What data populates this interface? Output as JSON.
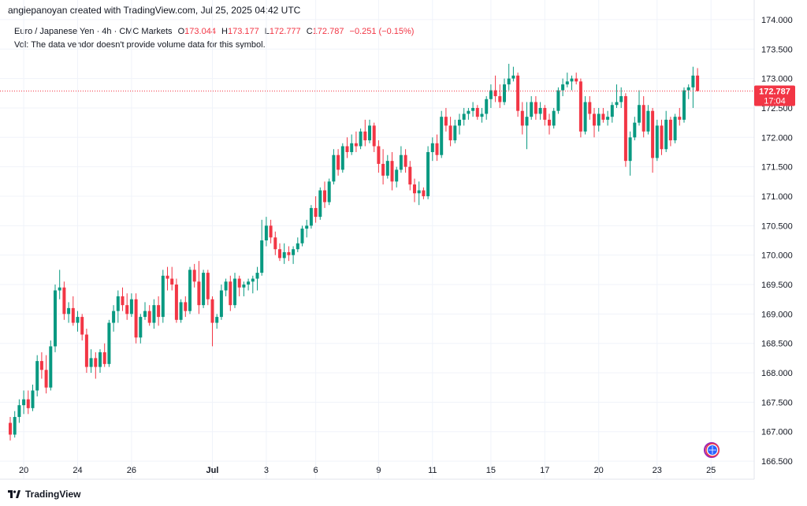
{
  "header": {
    "text": "angiepanoyan created with TradingView.com, Jul 25, 2025 04:42 UTC"
  },
  "legend": {
    "symbol": "Euro / Japanese Yen · 4h · CMC Markets",
    "o_label": "O",
    "o_val": "173.044",
    "h_label": "H",
    "h_val": "173.177",
    "l_label": "L",
    "l_val": "172.777",
    "c_label": "C",
    "c_val": "172.787",
    "change": "−0.251 (−0.15%)",
    "vol_line": "Vol: The data vendor doesn't provide volume data for this symbol."
  },
  "price_tag": {
    "price": "172.787",
    "countdown": "17:04"
  },
  "footer": {
    "brand": "TradingView"
  },
  "colors": {
    "up": "#089981",
    "down": "#f23645",
    "grid": "#f0f3fa",
    "text": "#131722"
  },
  "chart_data": {
    "type": "candlestick",
    "y_range": [
      166.3,
      174.2
    ],
    "y_ticks": [
      "166.500",
      "167.000",
      "167.500",
      "168.000",
      "168.500",
      "169.000",
      "169.500",
      "170.000",
      "170.500",
      "171.000",
      "171.500",
      "172.000",
      "172.500",
      "173.000",
      "173.500",
      "174.000"
    ],
    "x_ticks": [
      {
        "label": "20",
        "bar": 3
      },
      {
        "label": "24",
        "bar": 15
      },
      {
        "label": "26",
        "bar": 27
      },
      {
        "label": "Jul",
        "bar": 45
      },
      {
        "label": "3",
        "bar": 57
      },
      {
        "label": "6",
        "bar": 68
      },
      {
        "label": "9",
        "bar": 82
      },
      {
        "label": "11",
        "bar": 94
      },
      {
        "label": "15",
        "bar": 107
      },
      {
        "label": "17",
        "bar": 119
      },
      {
        "label": "20",
        "bar": 131
      },
      {
        "label": "23",
        "bar": 144
      },
      {
        "label": "25",
        "bar": 156
      }
    ],
    "last_price": 172.787,
    "candles": [
      [
        167.15,
        167.25,
        166.85,
        166.95
      ],
      [
        166.95,
        167.35,
        166.9,
        167.25
      ],
      [
        167.25,
        167.55,
        167.15,
        167.45
      ],
      [
        167.45,
        167.7,
        167.3,
        167.55
      ],
      [
        167.55,
        167.7,
        167.3,
        167.4
      ],
      [
        167.4,
        167.8,
        167.35,
        167.7
      ],
      [
        167.7,
        168.3,
        167.6,
        168.2
      ],
      [
        168.2,
        168.35,
        167.9,
        168.05
      ],
      [
        168.05,
        168.3,
        167.65,
        167.75
      ],
      [
        167.75,
        168.55,
        167.7,
        168.45
      ],
      [
        168.45,
        169.5,
        168.35,
        169.4
      ],
      [
        169.4,
        169.75,
        169.25,
        169.45
      ],
      [
        169.45,
        169.55,
        168.9,
        169.0
      ],
      [
        169.0,
        169.2,
        168.85,
        169.1
      ],
      [
        169.1,
        169.3,
        168.8,
        168.85
      ],
      [
        168.85,
        169.05,
        168.7,
        168.95
      ],
      [
        168.95,
        169.0,
        168.55,
        168.65
      ],
      [
        168.65,
        168.75,
        168.0,
        168.1
      ],
      [
        168.1,
        168.4,
        168.0,
        168.25
      ],
      [
        168.25,
        168.35,
        167.9,
        168.1
      ],
      [
        168.1,
        168.4,
        168.0,
        168.35
      ],
      [
        168.35,
        168.5,
        168.1,
        168.15
      ],
      [
        168.15,
        168.9,
        168.1,
        168.85
      ],
      [
        168.85,
        169.15,
        168.7,
        169.05
      ],
      [
        169.05,
        169.4,
        168.85,
        169.3
      ],
      [
        169.3,
        169.45,
        169.05,
        169.15
      ],
      [
        169.15,
        169.35,
        168.9,
        169.0
      ],
      [
        169.0,
        169.35,
        168.95,
        169.25
      ],
      [
        169.25,
        169.35,
        168.5,
        168.6
      ],
      [
        168.6,
        169.0,
        168.5,
        168.95
      ],
      [
        168.95,
        169.2,
        168.9,
        169.05
      ],
      [
        169.05,
        169.15,
        168.8,
        168.85
      ],
      [
        168.85,
        169.25,
        168.75,
        169.15
      ],
      [
        169.15,
        169.3,
        168.8,
        168.95
      ],
      [
        168.95,
        169.75,
        168.85,
        169.65
      ],
      [
        169.65,
        169.8,
        169.4,
        169.6
      ],
      [
        169.6,
        169.8,
        169.4,
        169.5
      ],
      [
        169.5,
        169.6,
        168.85,
        168.9
      ],
      [
        168.9,
        169.25,
        168.85,
        169.2
      ],
      [
        169.2,
        169.3,
        168.95,
        169.05
      ],
      [
        169.05,
        169.8,
        169.0,
        169.75
      ],
      [
        169.75,
        169.85,
        169.45,
        169.55
      ],
      [
        169.55,
        169.9,
        169.0,
        169.15
      ],
      [
        169.15,
        169.75,
        169.1,
        169.7
      ],
      [
        169.7,
        169.75,
        169.15,
        169.25
      ],
      [
        169.25,
        169.3,
        168.45,
        168.85
      ],
      [
        168.85,
        169.0,
        168.75,
        168.95
      ],
      [
        168.95,
        169.5,
        168.9,
        169.4
      ],
      [
        169.4,
        169.6,
        169.3,
        169.55
      ],
      [
        169.55,
        169.65,
        169.05,
        169.15
      ],
      [
        169.15,
        169.7,
        169.1,
        169.6
      ],
      [
        169.6,
        169.65,
        169.3,
        169.45
      ],
      [
        169.45,
        169.55,
        169.3,
        169.5
      ],
      [
        169.5,
        169.6,
        169.4,
        169.55
      ],
      [
        169.55,
        169.65,
        169.35,
        169.6
      ],
      [
        169.6,
        169.8,
        169.4,
        169.7
      ],
      [
        169.7,
        170.6,
        169.65,
        170.25
      ],
      [
        170.25,
        170.65,
        170.15,
        170.5
      ],
      [
        170.5,
        170.6,
        170.2,
        170.3
      ],
      [
        170.3,
        170.4,
        170.0,
        170.1
      ],
      [
        170.1,
        170.2,
        169.9,
        169.95
      ],
      [
        169.95,
        170.2,
        169.85,
        170.05
      ],
      [
        170.05,
        170.15,
        169.9,
        170.0
      ],
      [
        170.0,
        170.15,
        169.85,
        170.1
      ],
      [
        170.1,
        170.3,
        170.05,
        170.2
      ],
      [
        170.2,
        170.5,
        170.15,
        170.45
      ],
      [
        170.45,
        170.6,
        170.3,
        170.5
      ],
      [
        170.5,
        170.85,
        170.45,
        170.8
      ],
      [
        170.8,
        171.0,
        170.55,
        170.65
      ],
      [
        170.65,
        171.15,
        170.6,
        171.1
      ],
      [
        171.1,
        171.25,
        170.8,
        170.9
      ],
      [
        170.9,
        171.3,
        170.85,
        171.25
      ],
      [
        171.25,
        171.8,
        171.2,
        171.7
      ],
      [
        171.7,
        171.8,
        171.35,
        171.45
      ],
      [
        171.45,
        171.9,
        171.4,
        171.85
      ],
      [
        171.85,
        172.0,
        171.65,
        171.75
      ],
      [
        171.75,
        172.05,
        171.7,
        171.9
      ],
      [
        171.9,
        172.1,
        171.75,
        171.85
      ],
      [
        171.85,
        172.15,
        171.8,
        172.1
      ],
      [
        172.1,
        172.3,
        171.85,
        171.95
      ],
      [
        171.95,
        172.3,
        171.9,
        172.2
      ],
      [
        172.2,
        172.25,
        171.75,
        171.85
      ],
      [
        171.85,
        171.95,
        171.4,
        171.55
      ],
      [
        171.55,
        171.8,
        171.2,
        171.35
      ],
      [
        171.35,
        171.7,
        171.3,
        171.6
      ],
      [
        171.6,
        171.75,
        171.1,
        171.25
      ],
      [
        171.25,
        171.5,
        171.15,
        171.45
      ],
      [
        171.45,
        171.85,
        171.4,
        171.7
      ],
      [
        171.7,
        171.8,
        171.4,
        171.5
      ],
      [
        171.5,
        171.6,
        171.1,
        171.2
      ],
      [
        171.2,
        171.3,
        170.9,
        171.05
      ],
      [
        171.05,
        171.25,
        170.85,
        171.1
      ],
      [
        171.1,
        171.15,
        170.95,
        171.0
      ],
      [
        171.0,
        171.85,
        170.95,
        171.75
      ],
      [
        171.75,
        172.0,
        171.6,
        171.9
      ],
      [
        171.9,
        172.05,
        171.6,
        171.7
      ],
      [
        171.7,
        172.45,
        171.65,
        172.35
      ],
      [
        172.35,
        172.5,
        172.1,
        172.2
      ],
      [
        172.2,
        172.35,
        171.85,
        171.95
      ],
      [
        171.95,
        172.3,
        171.9,
        172.2
      ],
      [
        172.2,
        172.4,
        172.05,
        172.3
      ],
      [
        172.3,
        172.5,
        172.2,
        172.4
      ],
      [
        172.4,
        172.5,
        172.3,
        172.45
      ],
      [
        172.45,
        172.6,
        172.35,
        172.5
      ],
      [
        172.5,
        172.55,
        172.3,
        172.35
      ],
      [
        172.35,
        172.5,
        172.25,
        172.4
      ],
      [
        172.4,
        172.7,
        172.3,
        172.65
      ],
      [
        172.65,
        172.9,
        172.5,
        172.8
      ],
      [
        172.8,
        173.05,
        172.6,
        172.7
      ],
      [
        172.7,
        172.9,
        172.5,
        172.6
      ],
      [
        172.6,
        173.0,
        172.55,
        172.9
      ],
      [
        172.9,
        173.25,
        172.8,
        173.0
      ],
      [
        173.0,
        173.2,
        172.95,
        173.05
      ],
      [
        173.05,
        173.1,
        172.35,
        172.45
      ],
      [
        172.45,
        172.6,
        172.05,
        172.2
      ],
      [
        172.2,
        172.6,
        171.8,
        172.35
      ],
      [
        172.35,
        172.7,
        172.3,
        172.6
      ],
      [
        172.6,
        172.7,
        172.3,
        172.4
      ],
      [
        172.4,
        172.6,
        172.3,
        172.5
      ],
      [
        172.5,
        172.55,
        172.2,
        172.3
      ],
      [
        172.3,
        172.4,
        172.05,
        172.2
      ],
      [
        172.2,
        172.5,
        172.15,
        172.45
      ],
      [
        172.45,
        172.85,
        172.4,
        172.8
      ],
      [
        172.8,
        173.0,
        172.7,
        172.9
      ],
      [
        172.9,
        173.1,
        172.85,
        172.95
      ],
      [
        172.95,
        173.05,
        172.8,
        173.0
      ],
      [
        173.0,
        173.1,
        172.9,
        172.95
      ],
      [
        172.95,
        173.0,
        172.0,
        172.1
      ],
      [
        172.1,
        172.7,
        172.05,
        172.6
      ],
      [
        172.6,
        172.7,
        172.3,
        172.4
      ],
      [
        172.4,
        172.5,
        172.0,
        172.2
      ],
      [
        172.2,
        172.5,
        172.1,
        172.4
      ],
      [
        172.4,
        172.5,
        172.25,
        172.3
      ],
      [
        172.3,
        172.45,
        172.2,
        172.35
      ],
      [
        172.35,
        172.6,
        172.25,
        172.55
      ],
      [
        172.55,
        172.9,
        172.5,
        172.6
      ],
      [
        172.6,
        172.85,
        172.5,
        172.7
      ],
      [
        172.7,
        172.75,
        171.5,
        171.6
      ],
      [
        171.6,
        172.1,
        171.35,
        172.0
      ],
      [
        172.0,
        172.35,
        171.95,
        172.25
      ],
      [
        172.25,
        172.8,
        172.2,
        172.55
      ],
      [
        172.55,
        172.7,
        172.0,
        172.1
      ],
      [
        172.1,
        172.55,
        172.05,
        172.45
      ],
      [
        172.45,
        172.5,
        171.4,
        171.65
      ],
      [
        171.65,
        172.3,
        171.6,
        172.2
      ],
      [
        172.2,
        172.3,
        171.7,
        171.8
      ],
      [
        171.8,
        172.45,
        171.75,
        172.3
      ],
      [
        172.3,
        172.35,
        171.85,
        171.95
      ],
      [
        171.95,
        172.4,
        171.9,
        172.35
      ],
      [
        172.35,
        172.5,
        172.2,
        172.3
      ],
      [
        172.3,
        172.85,
        172.25,
        172.8
      ],
      [
        172.8,
        172.9,
        172.65,
        172.85
      ],
      [
        172.85,
        173.2,
        172.5,
        173.05
      ],
      [
        173.05,
        173.177,
        172.777,
        172.787
      ]
    ]
  }
}
